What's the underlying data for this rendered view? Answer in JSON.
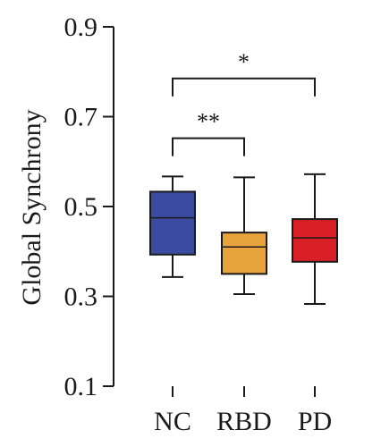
{
  "chart_data": {
    "type": "box",
    "ylabel": "Global Synchrony",
    "xlabel": "",
    "title": "",
    "ylim": [
      0.1,
      0.9
    ],
    "yticks": [
      0.1,
      0.3,
      0.5,
      0.7,
      0.9
    ],
    "ytick_labels": [
      "0.1",
      "0.3",
      "0.5",
      "0.7",
      "0.9"
    ],
    "categories": [
      "NC",
      "RBD",
      "PD"
    ],
    "boxes": [
      {
        "category": "NC",
        "whisker_low": 0.343,
        "q1": 0.393,
        "median": 0.475,
        "q3": 0.533,
        "whisker_high": 0.567,
        "color": "#3a4ba0"
      },
      {
        "category": "RBD",
        "whisker_low": 0.305,
        "q1": 0.35,
        "median": 0.41,
        "q3": 0.442,
        "whisker_high": 0.565,
        "color": "#e8a33d"
      },
      {
        "category": "PD",
        "whisker_low": 0.283,
        "q1": 0.377,
        "median": 0.43,
        "q3": 0.472,
        "whisker_high": 0.572,
        "color": "#d81f26"
      }
    ],
    "significance": [
      {
        "from": "NC",
        "to": "RBD",
        "label": "**",
        "y": 0.652
      },
      {
        "from": "NC",
        "to": "PD",
        "label": "*",
        "y": 0.785
      }
    ],
    "grid": false,
    "legend": "none"
  }
}
